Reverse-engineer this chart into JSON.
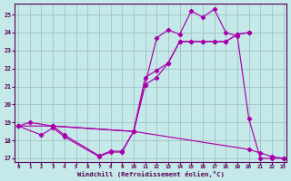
{
  "xlabel": "Windchill (Refroidissement éolien,°C)",
  "line_color": "#aa00aa",
  "bg_color": "#c5e8e8",
  "grid_color": "#99bbbb",
  "xlim": [
    -0.3,
    23.3
  ],
  "ylim": [
    16.8,
    25.6
  ],
  "xticks": [
    0,
    1,
    2,
    3,
    4,
    5,
    6,
    7,
    8,
    9,
    10,
    11,
    12,
    13,
    14,
    15,
    16,
    17,
    18,
    19,
    20,
    21,
    22,
    23
  ],
  "yticks": [
    17,
    18,
    19,
    20,
    21,
    22,
    23,
    24,
    25
  ],
  "series": [
    {
      "x": [
        0,
        1,
        3,
        10,
        11,
        12,
        13,
        14,
        15,
        16,
        17,
        18,
        19,
        20,
        21,
        22,
        23
      ],
      "y": [
        18.8,
        19.0,
        18.8,
        18.5,
        21.1,
        23.7,
        24.15,
        23.9,
        25.2,
        24.85,
        25.3,
        24.0,
        23.8,
        19.2,
        17.0,
        17.0,
        17.0
      ]
    },
    {
      "x": [
        3,
        10,
        11,
        12,
        13,
        14,
        15,
        16,
        17,
        18,
        19,
        20
      ],
      "y": [
        18.8,
        18.5,
        21.1,
        21.5,
        22.3,
        23.5,
        23.5,
        23.5,
        23.5,
        23.5,
        23.9,
        24.0
      ]
    },
    {
      "x": [
        0,
        2,
        3,
        4,
        7,
        8,
        9,
        10,
        11,
        12,
        13,
        14,
        15,
        16,
        17,
        18,
        19,
        20
      ],
      "y": [
        18.8,
        18.3,
        18.7,
        18.2,
        17.1,
        17.35,
        17.35,
        18.5,
        21.5,
        21.9,
        22.3,
        23.5,
        23.5,
        23.5,
        23.5,
        23.5,
        23.9,
        24.0
      ]
    },
    {
      "x": [
        0,
        3,
        4,
        7,
        8,
        9,
        10,
        20,
        21,
        22,
        23
      ],
      "y": [
        18.8,
        18.8,
        18.3,
        17.15,
        17.4,
        17.4,
        18.5,
        17.5,
        17.3,
        17.1,
        17.0
      ]
    }
  ]
}
